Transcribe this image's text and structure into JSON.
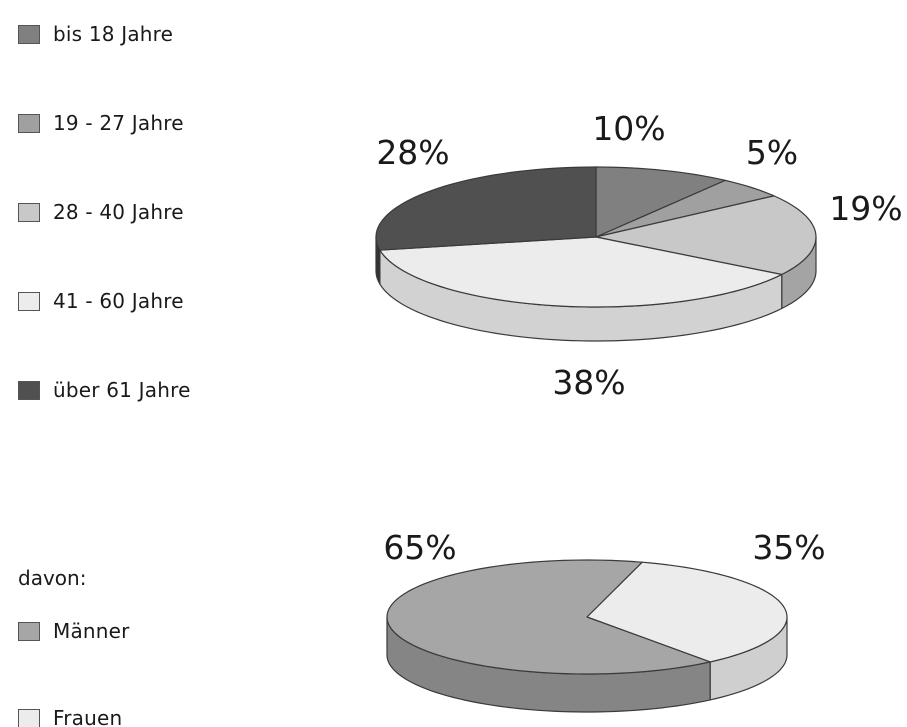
{
  "chart_data": [
    {
      "type": "pie",
      "title": "",
      "slices": [
        {
          "label": "bis 18 Jahre",
          "value": 10,
          "value_label": "10%",
          "color": "#808080",
          "side_color": "#5e5e5e"
        },
        {
          "label": "19 - 27 Jahre",
          "value": 5,
          "value_label": "5%",
          "color": "#a0a0a0",
          "side_color": "#7f7f7f"
        },
        {
          "label": "28 - 40 Jahre",
          "value": 19,
          "value_label": "19%",
          "color": "#c8c8c8",
          "side_color": "#a4a4a4"
        },
        {
          "label": "41 - 60 Jahre",
          "value": 38,
          "value_label": "38%",
          "color": "#ececec",
          "side_color": "#d2d2d2"
        },
        {
          "label": "über 61 Jahre",
          "value": 28,
          "value_label": "28%",
          "color": "#505050",
          "side_color": "#333333"
        }
      ]
    },
    {
      "type": "pie",
      "title": "",
      "legend_heading": "davon:",
      "slices": [
        {
          "label": "Männer",
          "value": 65,
          "value_label": "65%",
          "color": "#a6a6a6",
          "side_color": "#858585"
        },
        {
          "label": "Frauen",
          "value": 35,
          "value_label": "35%",
          "color": "#ececec",
          "side_color": "#cfcfcf"
        }
      ]
    }
  ]
}
